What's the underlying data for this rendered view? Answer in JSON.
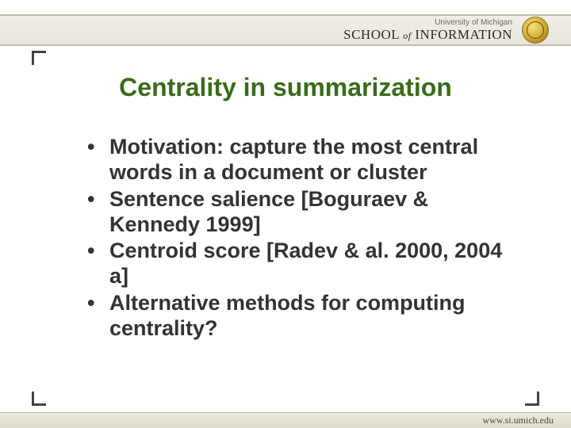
{
  "header": {
    "university": "University of Michigan",
    "school_prefix": "SCHOOL",
    "school_of": "of",
    "school_main": "INFORMATION"
  },
  "title": {
    "text": "Centrality in summarization",
    "color": "#3a6b1a",
    "fontsize": 32
  },
  "bullets": {
    "items": [
      "Motivation: capture the most central words in a document or cluster",
      "Sentence salience [Boguraev & Kennedy 1999]",
      "Centroid score [Radev & al. 2000, 2004 a]",
      "Alternative methods for computing centrality?"
    ],
    "color": "#333333",
    "fontsize": 27
  },
  "footer": {
    "url": "www.si.umich.edu"
  },
  "colors": {
    "background": "#ffffff",
    "header_bg": "#e8e6dc",
    "corner": "#444444"
  }
}
